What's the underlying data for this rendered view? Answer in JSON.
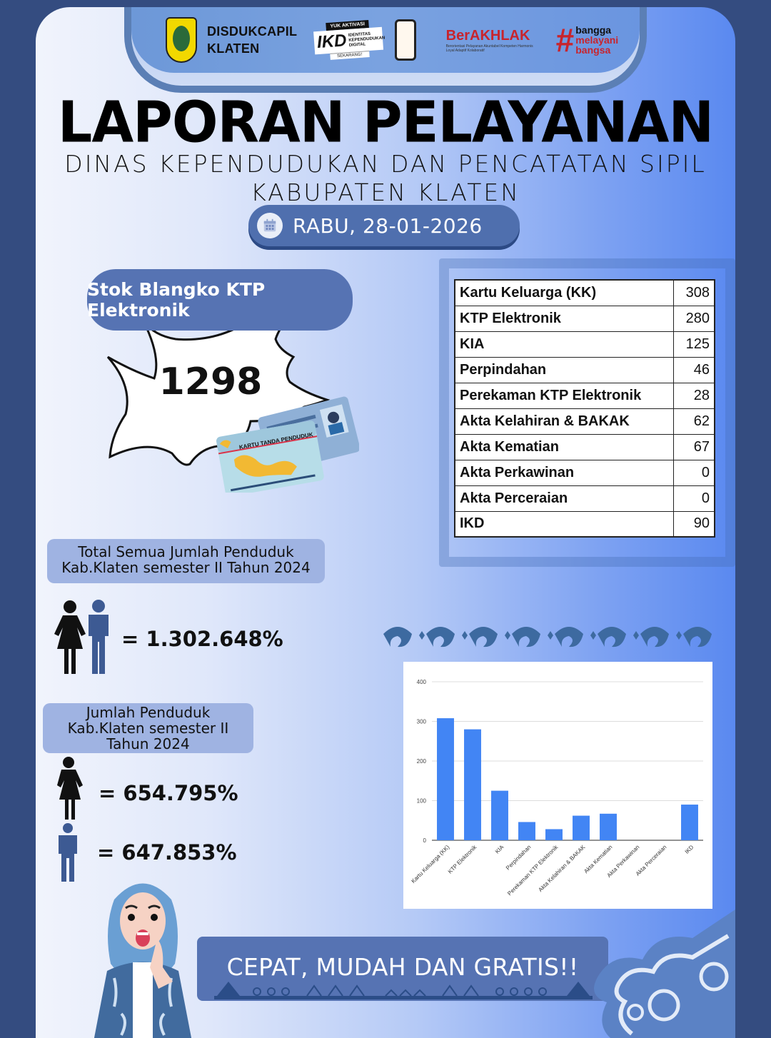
{
  "header": {
    "org_name_line1": "DISDUKCAPIL",
    "org_name_line2": "KLATEN",
    "ikd_promo": {
      "top": "YUK AKTIVASI",
      "big": "IKD",
      "sub": "IDENTITAS KEPENDUDUKAN DIGITAL",
      "bottom": "SEKARANG!"
    },
    "berakhlak": {
      "title": "BerAKHLAK",
      "subtitle": "Berorientasi Pelayanan Akuntabel Kompeten Harmonis Loyal Adaptif Kolaboratif"
    },
    "bangga": {
      "hash": "#",
      "line1": "bangga",
      "line2": "melayani",
      "line3": "bangsa"
    }
  },
  "title": "LAPORAN PELAYANAN",
  "subtitle_line1": "DINAS KEPENDUDUKAN DAN PENCATATAN SIPIL",
  "subtitle_line2": "KABUPATEN KLATEN",
  "date": "RABU, 28-01-2026",
  "stok": {
    "label": "Stok Blangko KTP Elektronik",
    "value": "1298",
    "card_text": "KARTU TANDA PENDUDUK"
  },
  "services": [
    {
      "label": "Kartu Keluarga (KK)",
      "value": "308"
    },
    {
      "label": "KTP Elektronik",
      "value": "280"
    },
    {
      "label": "KIA",
      "value": "125"
    },
    {
      "label": "Perpindahan",
      "value": "46"
    },
    {
      "label": "Perekaman KTP Elektronik",
      "value": "28"
    },
    {
      "label": "Akta Kelahiran & BAKAK",
      "value": "62"
    },
    {
      "label": "Akta Kematian",
      "value": "67"
    },
    {
      "label": "Akta Perkawinan",
      "value": "0"
    },
    {
      "label": "Akta Perceraian",
      "value": "0"
    },
    {
      "label": "IKD",
      "value": "90"
    }
  ],
  "population": {
    "total_label_line1": "Total Semua Jumlah Penduduk",
    "total_label_line2": "Kab.Klaten semester II Tahun 2024",
    "total_value": "= 1.302.648%",
    "gender_label_line1": "Jumlah Penduduk",
    "gender_label_line2": "Kab.Klaten semester II",
    "gender_label_line3": "Tahun 2024",
    "female_value": "= 654.795%",
    "male_value": "= 647.853%"
  },
  "slogan": "CEPAT, MUDAH DAN GRATIS!!",
  "colors": {
    "page_bg": "#344c80",
    "pill_blue": "#5673b3",
    "bar_blue": "#4285f4",
    "accent_red": "#c8242d"
  },
  "chart_data": {
    "type": "bar",
    "title": "",
    "xlabel": "",
    "ylabel": "",
    "categories": [
      "Kartu Keluarga (KK)",
      "KTP Elektronik",
      "KIA",
      "Perpindahan",
      "Perekaman KTP Elektronik",
      "Akta Kelahiran & BAKAK",
      "Akta Kematian",
      "Akta Perkawinan",
      "Akta Perceraian",
      "IKD"
    ],
    "values": [
      308,
      280,
      125,
      46,
      28,
      62,
      67,
      0,
      0,
      90
    ],
    "ylim": [
      0,
      400
    ],
    "yticks": [
      0,
      100,
      200,
      300,
      400
    ],
    "grid": true,
    "legend": "none"
  }
}
